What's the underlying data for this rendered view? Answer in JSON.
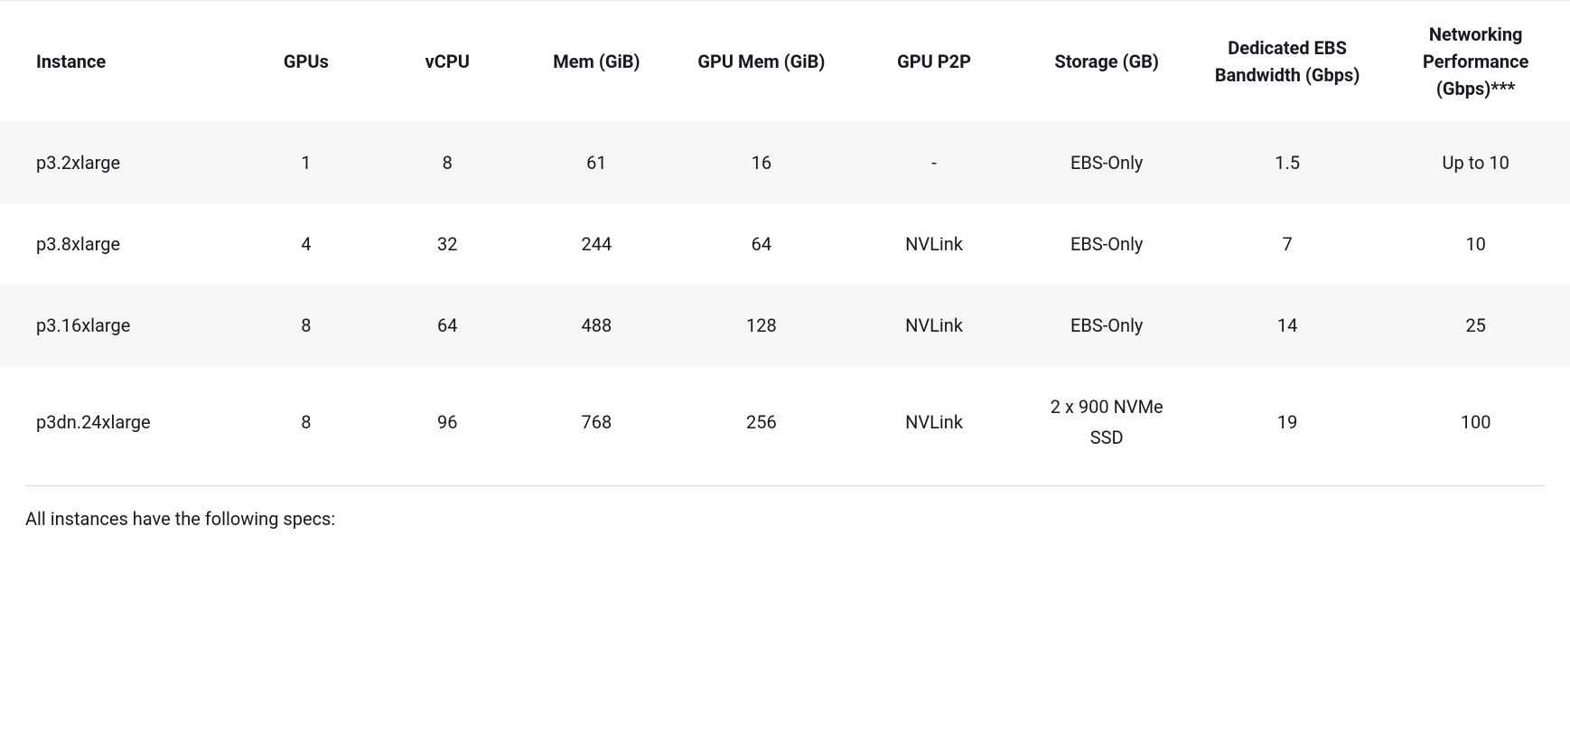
{
  "table": {
    "columns": [
      "Instance",
      "GPUs",
      "vCPU",
      "Mem (GiB)",
      "GPU Mem (GiB)",
      "GPU P2P",
      "Storage (GB)",
      "Dedicated EBS Bandwidth (Gbps)",
      "Networking Performance (Gbps)***"
    ],
    "rows": [
      [
        "p3.2xlarge",
        "1",
        "8",
        "61",
        "16",
        "-",
        "EBS-Only",
        "1.5",
        "Up to 10"
      ],
      [
        "p3.8xlarge",
        "4",
        "32",
        "244",
        "64",
        "NVLink",
        "EBS-Only",
        "7",
        "10"
      ],
      [
        "p3.16xlarge",
        "8",
        "64",
        "488",
        "128",
        "NVLink",
        "EBS-Only",
        "14",
        "25"
      ],
      [
        "p3dn.24xlarge",
        "8",
        "96",
        "768",
        "256",
        "NVLink",
        "2 x 900 NVMe SSD",
        "19",
        "100"
      ]
    ],
    "header_font_size_pt": 15,
    "body_font_size_pt": 15,
    "header_color": "#16191f",
    "body_color": "#16191f",
    "stripe_color": "#f6f6f6",
    "background_color": "#ffffff",
    "rule_color": "#d5dbdb"
  },
  "footer": {
    "text": "All instances have the following specs:"
  }
}
